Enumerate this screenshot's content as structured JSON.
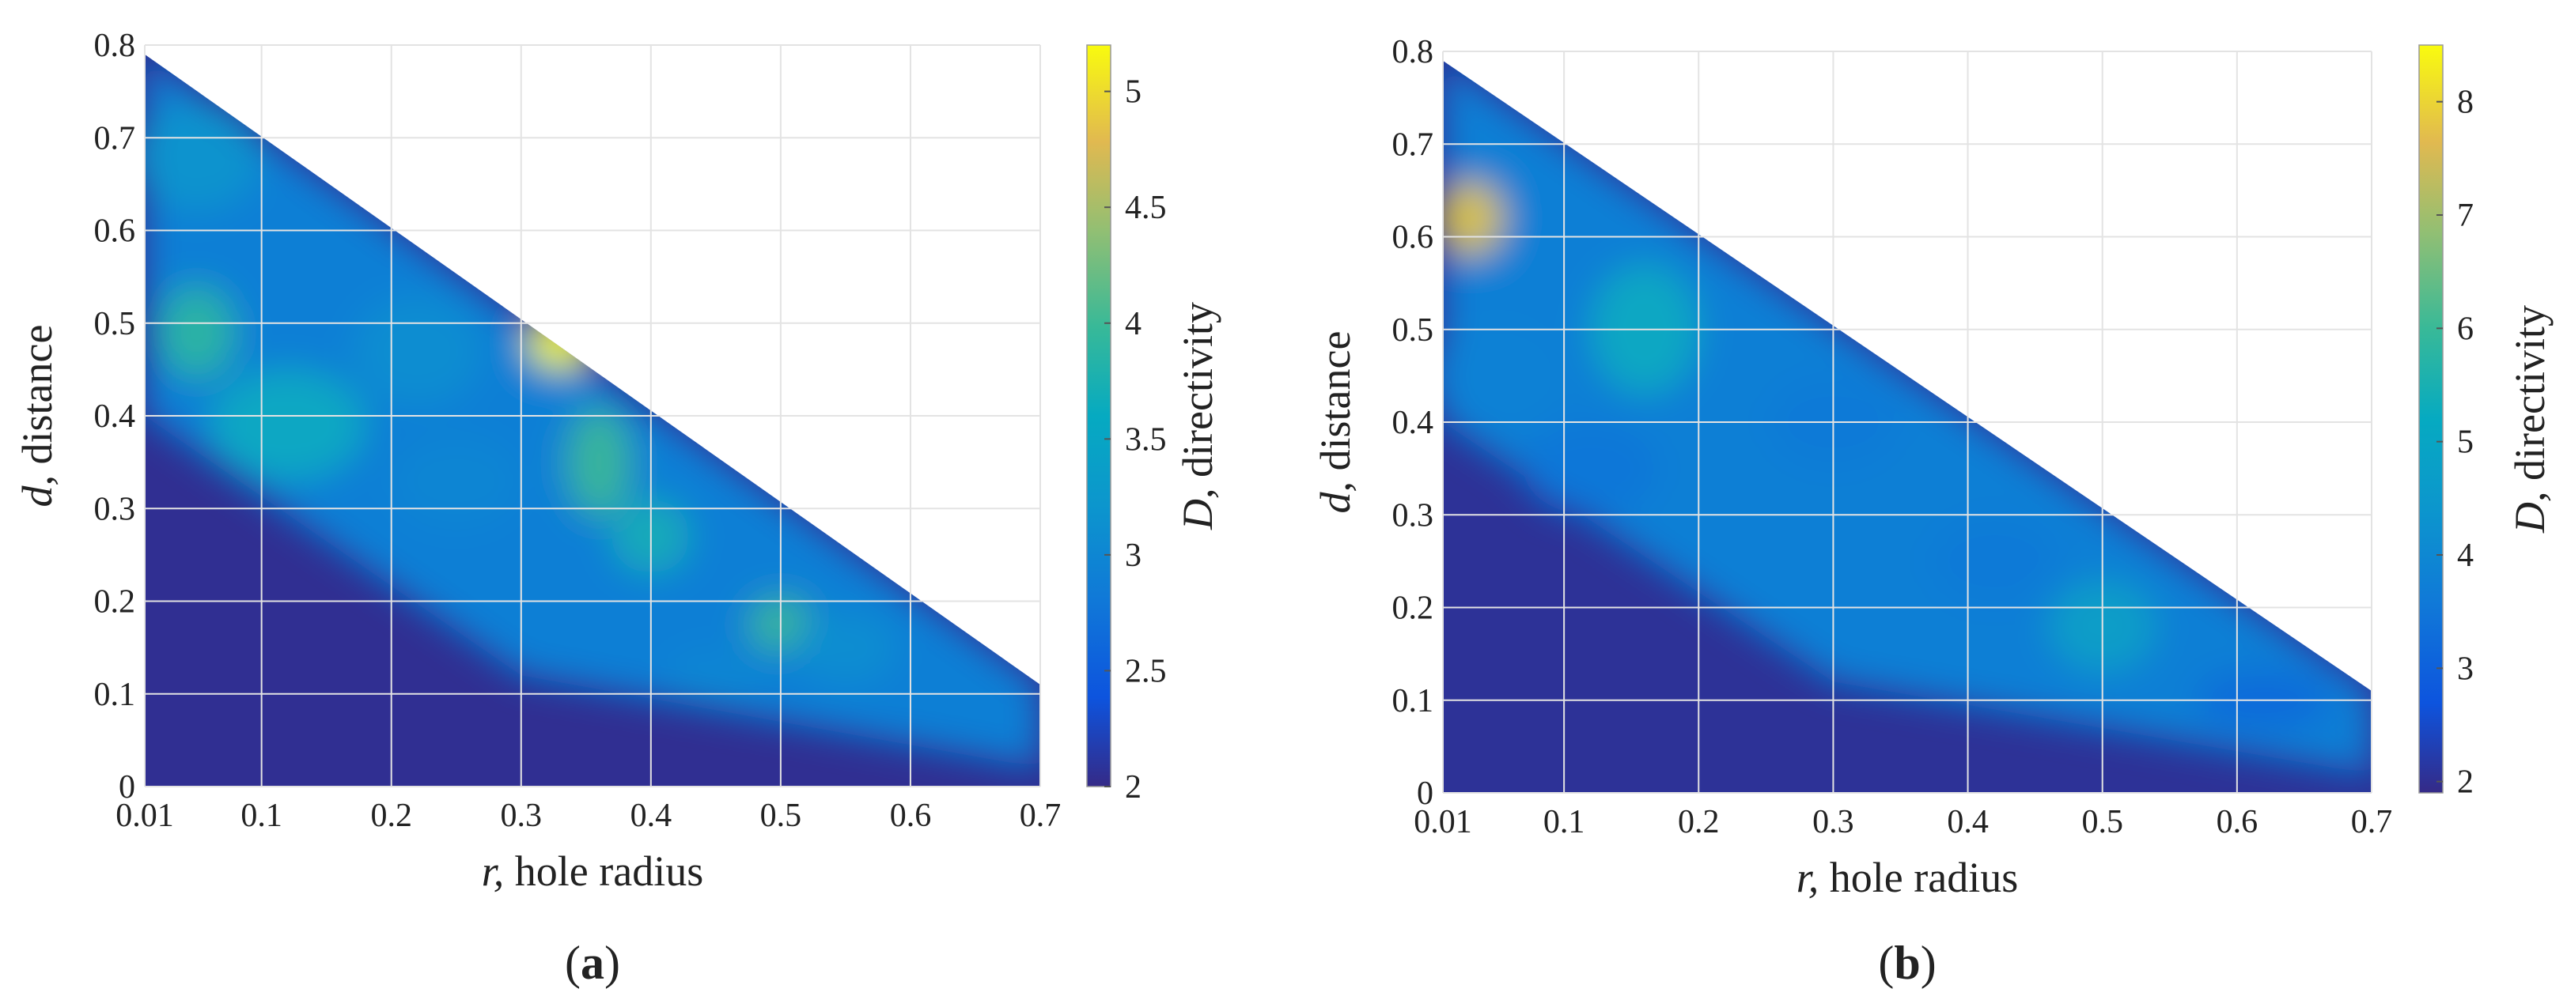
{
  "chart_data": [
    {
      "type": "heatmap",
      "panel_label": "(a)",
      "panel_letter": "a",
      "xlabel_var": "r,",
      "xlabel_text": " hole radius",
      "ylabel_var": "d,",
      "ylabel_text": " distance",
      "colorbar_var": "D,",
      "colorbar_text": " directivity",
      "xlim": [
        0.01,
        0.7
      ],
      "ylim": [
        0,
        0.8
      ],
      "x_ticks": [
        0.01,
        0.1,
        0.2,
        0.3,
        0.4,
        0.5,
        0.6,
        0.7
      ],
      "x_tick_labels": [
        "0.01",
        "0.1",
        "0.2",
        "0.3",
        "0.4",
        "0.5",
        "0.6",
        "0.7"
      ],
      "y_ticks": [
        0,
        0.1,
        0.2,
        0.3,
        0.4,
        0.5,
        0.6,
        0.7,
        0.8
      ],
      "y_tick_labels": [
        "0",
        "0.1",
        "0.2",
        "0.3",
        "0.4",
        "0.5",
        "0.6",
        "0.7",
        "0.8"
      ],
      "domain_boundary": {
        "upper_edge": [
          [
            0.01,
            0.79
          ],
          [
            0.7,
            0.11
          ]
        ]
      },
      "colorbar_range": [
        2,
        5.2
      ],
      "colorbar_ticks": [
        2,
        2.5,
        3,
        3.5,
        4,
        4.5,
        5
      ],
      "colorbar_tick_labels": [
        "2",
        "2.5",
        "3",
        "3.5",
        "4",
        "4.5",
        "5"
      ],
      "background_value": 2.05,
      "hotspots": [
        {
          "r": 0.05,
          "d": 0.49,
          "value": 3.9,
          "sx": 0.03,
          "sy": 0.05
        },
        {
          "r": 0.12,
          "d": 0.39,
          "value": 3.6,
          "sx": 0.06,
          "sy": 0.06
        },
        {
          "r": 0.05,
          "d": 0.68,
          "value": 3.2,
          "sx": 0.05,
          "sy": 0.06
        },
        {
          "r": 0.22,
          "d": 0.47,
          "value": 3.1,
          "sx": 0.05,
          "sy": 0.06
        },
        {
          "r": 0.25,
          "d": 0.33,
          "value": 3.0,
          "sx": 0.05,
          "sy": 0.05
        },
        {
          "r": 0.33,
          "d": 0.48,
          "value": 5.2,
          "sx": 0.025,
          "sy": 0.03
        },
        {
          "r": 0.36,
          "d": 0.35,
          "value": 4.0,
          "sx": 0.025,
          "sy": 0.06
        },
        {
          "r": 0.4,
          "d": 0.27,
          "value": 3.7,
          "sx": 0.03,
          "sy": 0.04
        },
        {
          "r": 0.5,
          "d": 0.175,
          "value": 4.0,
          "sx": 0.025,
          "sy": 0.03
        },
        {
          "r": 0.45,
          "d": 0.12,
          "value": 3.0,
          "sx": 0.04,
          "sy": 0.03
        },
        {
          "r": 0.55,
          "d": 0.15,
          "value": 3.1,
          "sx": 0.04,
          "sy": 0.04
        },
        {
          "r": 0.65,
          "d": 0.08,
          "value": 2.9,
          "sx": 0.04,
          "sy": 0.03
        }
      ]
    },
    {
      "type": "heatmap",
      "panel_label": "(b)",
      "panel_letter": "b",
      "xlabel_var": "r,",
      "xlabel_text": " hole radius",
      "ylabel_var": "d,",
      "ylabel_text": " distance",
      "colorbar_var": "D,",
      "colorbar_text": " directivity",
      "xlim": [
        0.01,
        0.7
      ],
      "ylim": [
        0,
        0.8
      ],
      "x_ticks": [
        0.01,
        0.1,
        0.2,
        0.3,
        0.4,
        0.5,
        0.6,
        0.7
      ],
      "x_tick_labels": [
        "0.01",
        "0.1",
        "0.2",
        "0.3",
        "0.4",
        "0.5",
        "0.6",
        "0.7"
      ],
      "y_ticks": [
        0,
        0.1,
        0.2,
        0.3,
        0.4,
        0.5,
        0.6,
        0.7,
        0.8
      ],
      "y_tick_labels": [
        "0",
        "0.1",
        "0.2",
        "0.3",
        "0.4",
        "0.5",
        "0.6",
        "0.7",
        "0.8"
      ],
      "domain_boundary": {
        "upper_edge": [
          [
            0.01,
            0.79
          ],
          [
            0.7,
            0.11
          ]
        ]
      },
      "colorbar_range": [
        1.9,
        8.5
      ],
      "colorbar_ticks": [
        2,
        3,
        4,
        5,
        6,
        7,
        8
      ],
      "colorbar_tick_labels": [
        "2",
        "3",
        "4",
        "5",
        "6",
        "7",
        "8"
      ],
      "background_value": 2.05,
      "hotspots": [
        {
          "r": 0.03,
          "d": 0.62,
          "value": 7.8,
          "sx": 0.025,
          "sy": 0.04
        },
        {
          "r": 0.16,
          "d": 0.5,
          "value": 5.2,
          "sx": 0.04,
          "sy": 0.07
        },
        {
          "r": 0.05,
          "d": 0.45,
          "value": 3.8,
          "sx": 0.05,
          "sy": 0.06
        },
        {
          "r": 0.12,
          "d": 0.35,
          "value": 3.5,
          "sx": 0.05,
          "sy": 0.05
        },
        {
          "r": 0.3,
          "d": 0.4,
          "value": 3.6,
          "sx": 0.05,
          "sy": 0.05
        },
        {
          "r": 0.42,
          "d": 0.25,
          "value": 3.6,
          "sx": 0.05,
          "sy": 0.05
        },
        {
          "r": 0.5,
          "d": 0.18,
          "value": 4.8,
          "sx": 0.04,
          "sy": 0.05
        },
        {
          "r": 0.62,
          "d": 0.1,
          "value": 3.2,
          "sx": 0.05,
          "sy": 0.03
        }
      ]
    }
  ]
}
